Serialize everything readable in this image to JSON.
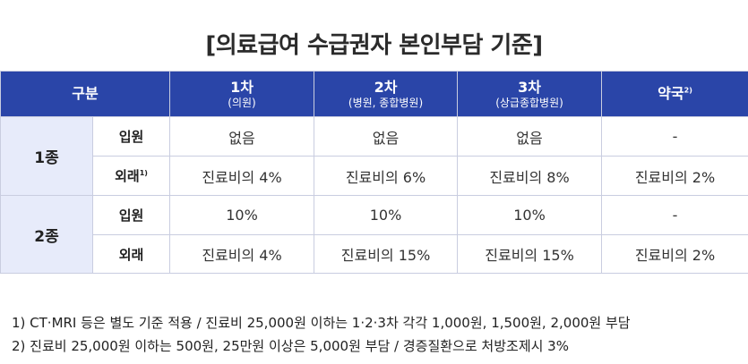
{
  "title": "[의료급여 수급권자 본인부담 기준]",
  "table": {
    "header": {
      "category": "구분",
      "cols": [
        {
          "label": "1차",
          "sub": "(의원)"
        },
        {
          "label": "2차",
          "sub": "(병원, 종합병원)"
        },
        {
          "label": "3차",
          "sub": "(상급종합병원)"
        },
        {
          "label": "약국",
          "sup": "2)"
        }
      ]
    },
    "groups": [
      {
        "label": "1종",
        "rows": [
          {
            "label": "입원",
            "values": [
              "없음",
              "없음",
              "없음",
              "-"
            ]
          },
          {
            "label": "외래",
            "sup": "1)",
            "values": [
              "진료비의 4%",
              "진료비의 6%",
              "진료비의 8%",
              "진료비의 2%"
            ]
          }
        ]
      },
      {
        "label": "2종",
        "rows": [
          {
            "label": "입원",
            "values": [
              "10%",
              "10%",
              "10%",
              "-"
            ]
          },
          {
            "label": "외래",
            "values": [
              "진료비의 4%",
              "진료비의 15%",
              "진료비의 15%",
              "진료비의 2%"
            ]
          }
        ]
      }
    ]
  },
  "notes": [
    "1) CT·MRI 등은 별도 기준 적용 / 진료비 25,000원 이하는 1·2·3차 각각 1,000원, 1,500원, 2,000원 부담",
    "2) 진료비 25,000원 이하는 500원, 25만원 이상은 5,000원 부담 / 경증질환으로 처방조제시 3%"
  ]
}
